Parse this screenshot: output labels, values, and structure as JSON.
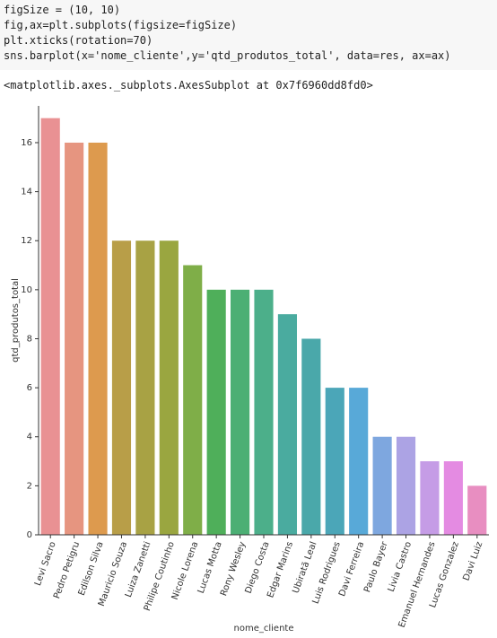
{
  "code": [
    "figSize = (10, 10)",
    "fig,ax=plt.subplots(figsize=figSize)",
    "plt.xticks(rotation=70)",
    "sns.barplot(x='nome_cliente',y='qtd_produtos_total', data=res, ax=ax)"
  ],
  "output": "<matplotlib.axes._subplots.AxesSubplot at 0x7f6960dd8fd0>",
  "chart_data": {
    "type": "bar",
    "x_label": "nome_cliente",
    "y_label": "qtd_produtos_total",
    "categories": [
      "Levi Sacro",
      "Pedro Petigru",
      "Edilson Silva",
      "Mauricio Souza",
      "Luiza Zanetti",
      "Philipe Coutinho",
      "Nicole Lorena",
      "Lucas Motta",
      "Rony Wesley",
      "Diego Costa",
      "Edgar Marins",
      "Ubiratã Leal",
      "Luis Rodrigues",
      "Davi Ferreira",
      "Paulo Bayer",
      "Livia Castro",
      "Emanuel Hernandes",
      "Lucas Gonzalez",
      "Davi Luiz"
    ],
    "values": [
      17,
      16,
      16,
      12,
      12,
      12,
      11,
      10,
      10,
      10,
      9,
      8,
      6,
      6,
      4,
      4,
      3,
      3,
      2
    ],
    "colors": [
      "#e99193",
      "#e69580",
      "#dd9a4e",
      "#b89e48",
      "#a8a244",
      "#9aa640",
      "#7fae48",
      "#4faf5a",
      "#4caf74",
      "#4caf8a",
      "#4aab9f",
      "#4aa8aa",
      "#4ba6b8",
      "#58a9d8",
      "#7ea7df",
      "#aca3e4",
      "#c59ce6",
      "#e48be2",
      "#e88ec1"
    ],
    "ylim": [
      0,
      17.5
    ],
    "yticks": [
      0,
      2,
      4,
      6,
      8,
      10,
      12,
      14,
      16
    ],
    "grid": false
  }
}
